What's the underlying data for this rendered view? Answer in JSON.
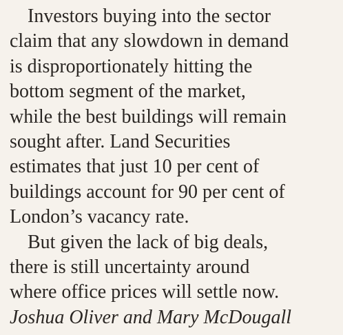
{
  "article": {
    "paragraphs": [
      {
        "lines": [
          "Investors buying into the sector",
          "claim that any slowdown in demand",
          "is disproportionately hitting the",
          "bottom segment of the market,",
          "while the best buildings will remain",
          "sought after. Land Securities",
          "estimates that just 10 per cent of",
          "buildings account for 90 per cent of",
          "London’s vacancy rate."
        ]
      },
      {
        "lines": [
          "But given the lack of big deals,",
          "there is still uncertainty around",
          "where office prices will settle now."
        ]
      }
    ],
    "byline": "Joshua Oliver and Mary McDougall"
  }
}
